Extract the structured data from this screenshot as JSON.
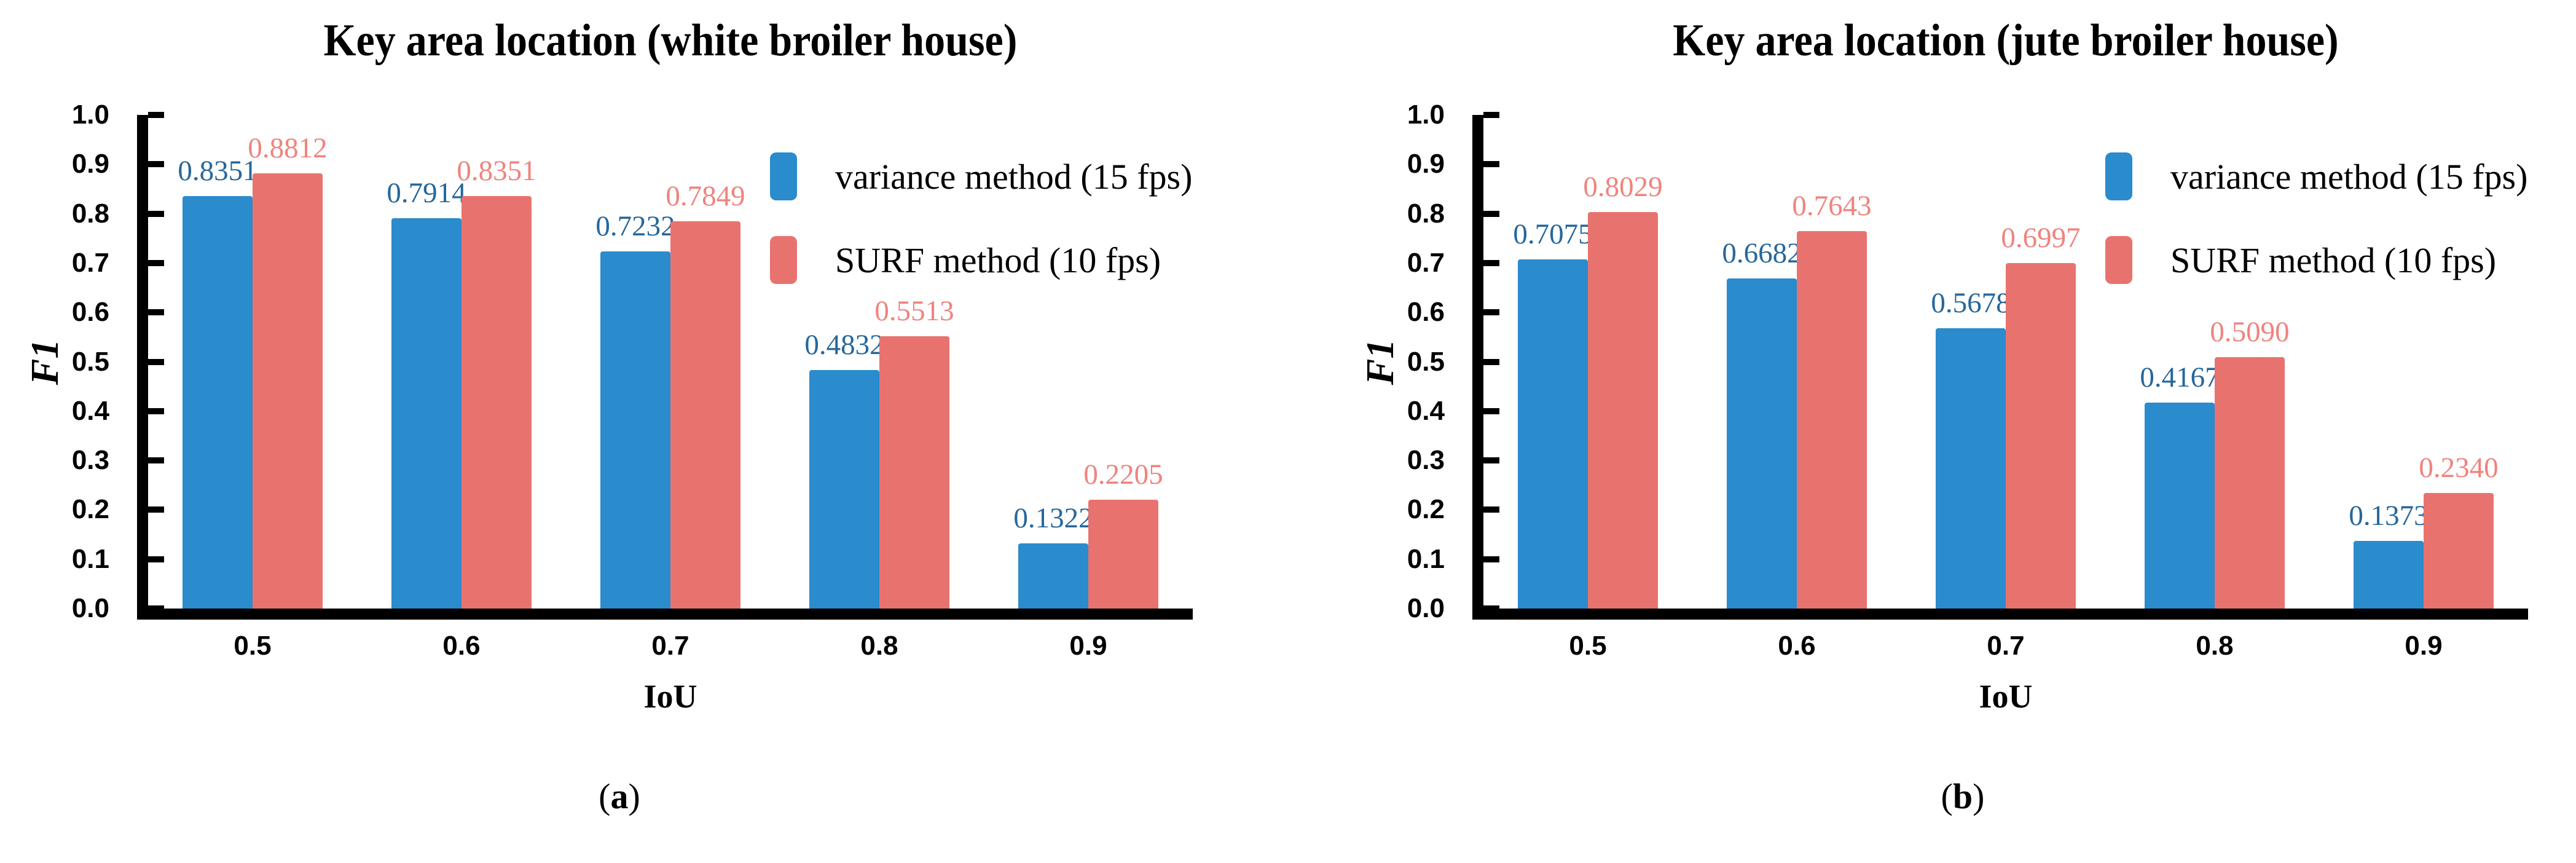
{
  "page": {
    "background": "#ffffff",
    "axis_color": "#000000",
    "tick_label_color": "#000000"
  },
  "chart_data": [
    {
      "type": "bar",
      "title": "Key area location (white broiler house)",
      "xlabel": "IoU",
      "ylabel": "F1",
      "caption": {
        "open": "(",
        "label": "a",
        "close": ")"
      },
      "categories": [
        "0.5",
        "0.6",
        "0.7",
        "0.8",
        "0.9"
      ],
      "ylim": [
        0.0,
        1.0
      ],
      "ytick_step": 0.1,
      "yticklabels": [
        "1.0",
        "0.9",
        "0.8",
        "0.7",
        "0.6",
        "0.5",
        "0.4",
        "0.3",
        "0.2",
        "0.1",
        "0.0"
      ],
      "grid": false,
      "legend_position": "upper right",
      "series": [
        {
          "name": "variance method (15 fps)",
          "color": "#2A8BCD",
          "label_color": "#26679B",
          "values": [
            0.8351,
            0.7914,
            0.7232,
            0.4832,
            0.1322
          ]
        },
        {
          "name": "SURF method (10 fps)",
          "color": "#E8736E",
          "label_color": "#F0837D",
          "values": [
            0.8812,
            0.8351,
            0.7849,
            0.5513,
            0.2205
          ]
        }
      ]
    },
    {
      "type": "bar",
      "title": "Key area location (jute broiler house)",
      "xlabel": "IoU",
      "ylabel": "F1",
      "caption": {
        "open": "(",
        "label": "b",
        "close": ")"
      },
      "categories": [
        "0.5",
        "0.6",
        "0.7",
        "0.8",
        "0.9"
      ],
      "ylim": [
        0.0,
        1.0
      ],
      "ytick_step": 0.1,
      "yticklabels": [
        "1.0",
        "0.9",
        "0.8",
        "0.7",
        "0.6",
        "0.5",
        "0.4",
        "0.3",
        "0.2",
        "0.1",
        "0.0"
      ],
      "grid": false,
      "legend_position": "upper right",
      "series": [
        {
          "name": "variance method (15 fps)",
          "color": "#2A8BCD",
          "label_color": "#26679B",
          "values": [
            0.7075,
            0.6682,
            0.5678,
            0.4167,
            0.1373
          ]
        },
        {
          "name": "SURF method (10 fps)",
          "color": "#E8736E",
          "label_color": "#F0837D",
          "values": [
            0.8029,
            0.7643,
            0.6997,
            0.509,
            0.234
          ]
        }
      ]
    }
  ]
}
